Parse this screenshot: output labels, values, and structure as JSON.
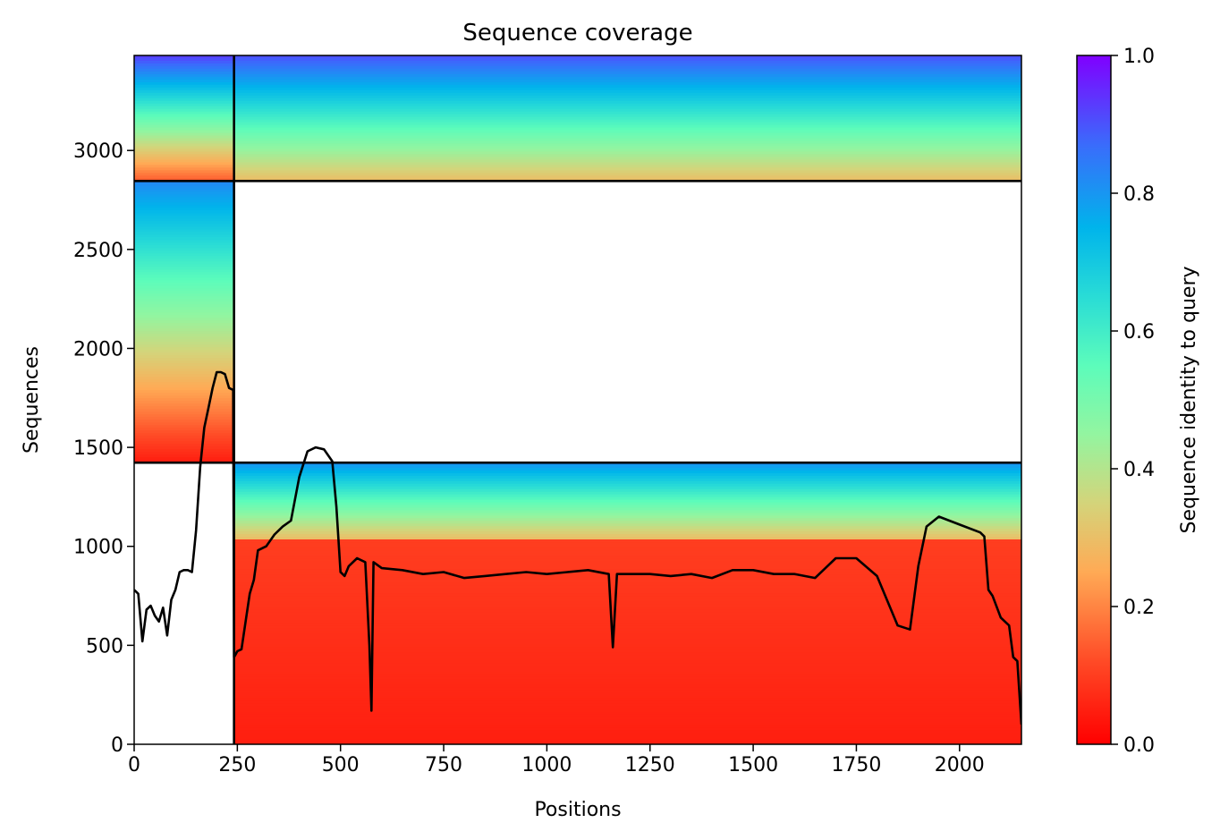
{
  "chart_data": {
    "type": "heatmap",
    "title": "Sequence coverage",
    "xlabel": "Positions",
    "ylabel": "Sequences",
    "xlim": [
      0,
      2150
    ],
    "ylim": [
      0,
      3480
    ],
    "xticks": [
      0,
      250,
      500,
      750,
      1000,
      1250,
      1500,
      1750,
      2000
    ],
    "xtick_labels": [
      "0",
      "250",
      "500",
      "750",
      "1000",
      "1250",
      "1500",
      "1750",
      "2000"
    ],
    "yticks": [
      0,
      500,
      1000,
      1500,
      2000,
      2500,
      3000
    ],
    "ytick_labels": [
      "0",
      "500",
      "1000",
      "1500",
      "2000",
      "2500",
      "3000"
    ],
    "colormap": "rainbow_r",
    "colorbar": {
      "label": "Sequence identity to query",
      "range": [
        0.0,
        1.0
      ],
      "ticks": [
        0.0,
        0.2,
        0.4,
        0.6,
        0.8,
        1.0
      ],
      "tick_labels": [
        "0.0",
        "0.2",
        "0.4",
        "0.6",
        "0.8",
        "1.0"
      ]
    },
    "block_boundaries": {
      "vertical_position": 242,
      "horizontal_sequences": [
        1423,
        2846
      ]
    },
    "blocks": [
      {
        "x": [
          0,
          242
        ],
        "y": [
          1423,
          2846
        ],
        "id_top": 0.82,
        "id_bottom": 0.05
      },
      {
        "x": [
          0,
          242
        ],
        "y": [
          2846,
          3480
        ],
        "id_top": 0.92,
        "id_bottom": 0.15
      },
      {
        "x": [
          242,
          2150
        ],
        "y": [
          2846,
          3480
        ],
        "id_top": 0.9,
        "id_bottom": 0.3
      },
      {
        "x": [
          242,
          2150
        ],
        "y": [
          1035,
          1423
        ],
        "id_top": 0.8,
        "id_bottom": 0.3
      },
      {
        "x": [
          242,
          2150
        ],
        "y": [
          0,
          1035
        ],
        "id_top": 0.1,
        "id_bottom": 0.05
      }
    ],
    "coverage_line": {
      "color": "#000000",
      "x": [
        0,
        5,
        10,
        20,
        30,
        40,
        50,
        60,
        70,
        80,
        90,
        100,
        110,
        120,
        130,
        140,
        150,
        160,
        170,
        180,
        190,
        200,
        210,
        220,
        230,
        240,
        242,
        245,
        250,
        260,
        270,
        280,
        290,
        300,
        320,
        340,
        360,
        380,
        400,
        420,
        440,
        460,
        480,
        490,
        500,
        510,
        520,
        540,
        560,
        570,
        575,
        580,
        600,
        650,
        700,
        750,
        800,
        850,
        900,
        950,
        1000,
        1050,
        1100,
        1150,
        1160,
        1170,
        1200,
        1250,
        1300,
        1350,
        1400,
        1450,
        1500,
        1550,
        1600,
        1650,
        1700,
        1750,
        1800,
        1850,
        1880,
        1900,
        1920,
        1950,
        2000,
        2050,
        2060,
        2070,
        2080,
        2100,
        2120,
        2130,
        2140,
        2150
      ],
      "y": [
        780,
        770,
        760,
        520,
        680,
        700,
        650,
        620,
        690,
        550,
        730,
        780,
        870,
        880,
        880,
        870,
        1080,
        1400,
        1600,
        1700,
        1800,
        1880,
        1880,
        1870,
        1800,
        1790,
        440,
        450,
        470,
        480,
        620,
        760,
        830,
        980,
        1000,
        1060,
        1100,
        1130,
        1350,
        1480,
        1500,
        1490,
        1430,
        1200,
        870,
        850,
        900,
        940,
        920,
        500,
        170,
        920,
        890,
        880,
        860,
        870,
        840,
        850,
        860,
        870,
        860,
        870,
        880,
        860,
        490,
        860,
        860,
        860,
        850,
        860,
        840,
        880,
        880,
        860,
        860,
        840,
        940,
        940,
        850,
        600,
        580,
        900,
        1100,
        1150,
        1110,
        1070,
        1050,
        780,
        750,
        640,
        600,
        440,
        420,
        100
      ]
    }
  }
}
